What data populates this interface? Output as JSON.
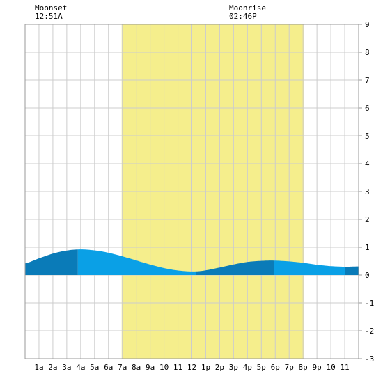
{
  "chart_data": {
    "type": "area",
    "x_tick_labels": [
      "1a",
      "2a",
      "3a",
      "4a",
      "5a",
      "6a",
      "7a",
      "8a",
      "9a",
      "10",
      "11",
      "12",
      "1p",
      "2p",
      "3p",
      "4p",
      "5p",
      "6p",
      "7p",
      "8p",
      "9p",
      "10",
      "11"
    ],
    "y_tick_labels": [
      "9",
      "8",
      "7",
      "6",
      "5",
      "4",
      "3",
      "2",
      "1",
      "0",
      "-1",
      "-2",
      "-3"
    ],
    "ylim": [
      -3,
      9
    ],
    "xlim_hours": [
      0,
      24
    ],
    "grid": true,
    "daylight_hours": [
      6.95,
      20.05
    ],
    "series": [
      {
        "x_hours": [
          0,
          1,
          2,
          3,
          3.8,
          4.5,
          5.5,
          6.5,
          7.5,
          8.5,
          9.5,
          10.5,
          11.5,
          12.3,
          13,
          14,
          15,
          16,
          17,
          17.9,
          19,
          20,
          21,
          22,
          23,
          24
        ],
        "y": [
          0.42,
          0.6,
          0.77,
          0.88,
          0.92,
          0.91,
          0.85,
          0.74,
          0.6,
          0.45,
          0.31,
          0.2,
          0.14,
          0.13,
          0.17,
          0.27,
          0.38,
          0.47,
          0.51,
          0.52,
          0.49,
          0.44,
          0.37,
          0.32,
          0.3,
          0.31
        ]
      }
    ],
    "annotations": [
      {
        "label": "Moonset",
        "time": "12:51A"
      },
      {
        "label": "Moonrise",
        "time": "02:46P"
      }
    ]
  },
  "colors": {
    "daylight": "#f5ee8c",
    "grid": "#cccccc",
    "border": "#999999",
    "tide_dark": "#0a7bb8",
    "tide_light": "#0aa0e6"
  }
}
